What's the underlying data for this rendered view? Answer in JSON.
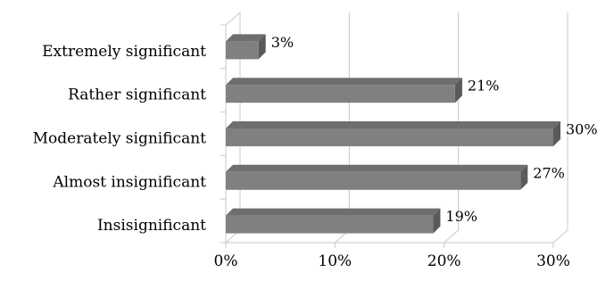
{
  "chart_data": {
    "type": "bar",
    "orientation": "horizontal",
    "style": "3d",
    "categories": [
      "Extremely significant",
      "Rather significant",
      "Moderately significant",
      "Almost insignificant",
      "Insisignificant"
    ],
    "values": [
      3,
      21,
      30,
      27,
      19
    ],
    "data_labels": [
      "3%",
      "21%",
      "30%",
      "27%",
      "19%"
    ],
    "x_ticks": [
      0,
      10,
      20,
      30
    ],
    "x_tick_labels": [
      "0%",
      "10%",
      "20%",
      "30%"
    ],
    "xlim": [
      0,
      30
    ],
    "grid": true,
    "legend": "none",
    "bar_color": "#808080"
  }
}
